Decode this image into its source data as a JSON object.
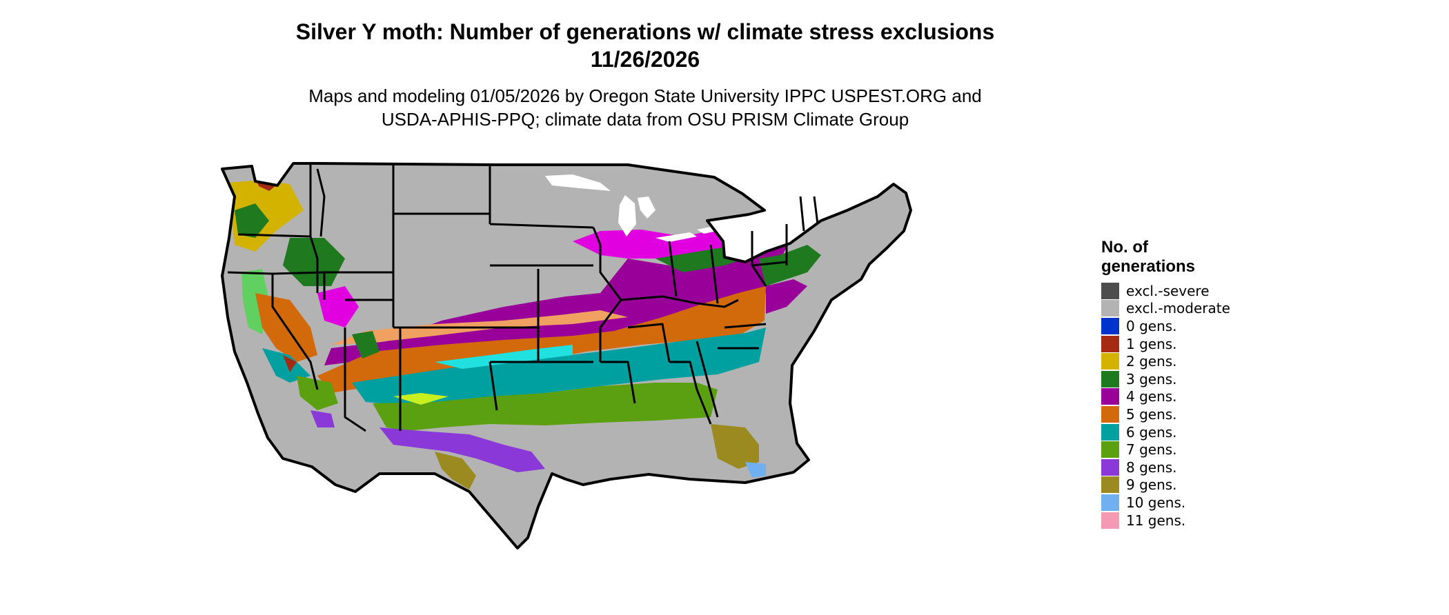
{
  "title_line1": "Silver Y moth: Number of generations w/ climate stress exclusions",
  "title_line2": "11/26/2026",
  "subtitle_line1": "Maps and modeling 01/05/2026 by Oregon State University IPPC USPEST.ORG and",
  "subtitle_line2": "USDA-APHIS-PPQ; climate data from OSU PRISM Climate Group",
  "legend": {
    "title_line1": "No. of",
    "title_line2": "generations",
    "items": [
      {
        "label": "excl.-severe",
        "color": "#4d4d4d"
      },
      {
        "label": "excl.-moderate",
        "color": "#b3b3b3"
      },
      {
        "label": "0 gens.",
        "color": "#0033cc"
      },
      {
        "label": "1 gens.",
        "color": "#a52a14"
      },
      {
        "label": "2 gens.",
        "color": "#d4b200"
      },
      {
        "label": "3 gens.",
        "color": "#1f7a1f"
      },
      {
        "label": "4 gens.",
        "color": "#990099"
      },
      {
        "label": "5 gens.",
        "color": "#d2690a"
      },
      {
        "label": "6 gens.",
        "color": "#00a0a0"
      },
      {
        "label": "7 gens.",
        "color": "#5aa010"
      },
      {
        "label": "8 gens.",
        "color": "#8a38d8"
      },
      {
        "label": "9 gens.",
        "color": "#9a8a20"
      },
      {
        "label": "10 gens.",
        "color": "#70b0f0"
      },
      {
        "label": "11 gens.",
        "color": "#f59ab4"
      }
    ]
  },
  "map_colors": {
    "background": "#b3b3b3",
    "border": "#000000",
    "magenta_fringe": "#e000e0",
    "light_orange": "#f0a060",
    "cyan_fringe": "#20e0e0",
    "yellowgreen_fringe": "#c8f020",
    "light_green": "#60d060"
  }
}
